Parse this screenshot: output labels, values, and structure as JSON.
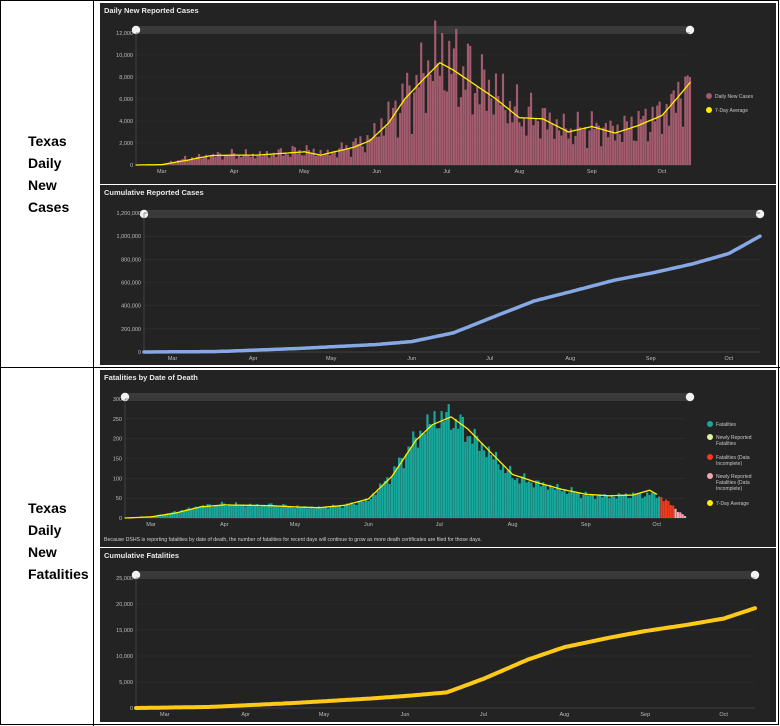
{
  "rows": [
    {
      "label_lines": [
        "Texas",
        "Daily",
        "New",
        "Cases"
      ]
    },
    {
      "label_lines": [
        "Texas",
        "Daily",
        "New",
        "Fatalities"
      ]
    }
  ],
  "colors": {
    "panel_bg": "#232323",
    "cases_bar": "#a35b6e",
    "avg_line": "#ffee00",
    "cumulative_cases": "#86a9e6",
    "fatalities_bar": "#18a89b",
    "newly_reported": "#d9f5a0",
    "incomplete": "#f03b1e",
    "newly_incomplete": "#f2a6b2",
    "cumulative_fatalities": "#ffc91a"
  },
  "fatality_note": "Because DSHS is reporting fatalities by date of death, the number of fatalities for recent days will continue to grow as more death certificates are filed for those days.",
  "chart_data": [
    {
      "id": "daily_cases",
      "type": "bar",
      "title": "Daily New Reported Cases",
      "x_start": "2020-03-04",
      "x_end": "2020-10-27",
      "ylim": [
        0,
        12000
      ],
      "yticks": [
        "0",
        "2,000",
        "4,000",
        "6,000",
        "8,000",
        "10,000",
        "12,000"
      ],
      "xticks": [
        "Mar",
        "Apr",
        "May",
        "Jun",
        "Jul",
        "Aug",
        "Sep",
        "Oct"
      ],
      "legend": [
        "Daily New Cases",
        "7-Day Average"
      ],
      "legend_position": "right",
      "series": [
        {
          "name": "Daily New Cases",
          "kind": "bar",
          "anchors": [
            [
              "2020-03-04",
              0
            ],
            [
              "2020-03-15",
              60
            ],
            [
              "2020-03-25",
              550
            ],
            [
              "2020-04-05",
              850
            ],
            [
              "2020-04-15",
              950
            ],
            [
              "2020-04-25",
              900
            ],
            [
              "2020-05-05",
              1100
            ],
            [
              "2020-05-15",
              1300
            ],
            [
              "2020-05-25",
              1000
            ],
            [
              "2020-06-05",
              1800
            ],
            [
              "2020-06-12",
              2300
            ],
            [
              "2020-06-20",
              4200
            ],
            [
              "2020-06-27",
              6000
            ],
            [
              "2020-07-05",
              8000
            ],
            [
              "2020-07-10",
              9500
            ],
            [
              "2020-07-18",
              9000
            ],
            [
              "2020-07-27",
              7500
            ],
            [
              "2020-08-05",
              6500
            ],
            [
              "2020-08-15",
              4500
            ],
            [
              "2020-08-25",
              4200
            ],
            [
              "2020-09-05",
              3000
            ],
            [
              "2020-09-15",
              3400
            ],
            [
              "2020-09-25",
              3100
            ],
            [
              "2020-10-05",
              3700
            ],
            [
              "2020-10-15",
              4600
            ],
            [
              "2020-10-22",
              6000
            ],
            [
              "2020-10-27",
              7800
            ]
          ]
        },
        {
          "name": "7-Day Average",
          "kind": "line",
          "anchors": [
            [
              "2020-03-04",
              0
            ],
            [
              "2020-03-15",
              30
            ],
            [
              "2020-03-25",
              400
            ],
            [
              "2020-04-05",
              850
            ],
            [
              "2020-04-15",
              900
            ],
            [
              "2020-04-25",
              900
            ],
            [
              "2020-05-05",
              1050
            ],
            [
              "2020-05-15",
              1200
            ],
            [
              "2020-05-22",
              900
            ],
            [
              "2020-06-05",
              1600
            ],
            [
              "2020-06-12",
              2200
            ],
            [
              "2020-06-20",
              3800
            ],
            [
              "2020-06-27",
              6000
            ],
            [
              "2020-07-05",
              7800
            ],
            [
              "2020-07-12",
              9300
            ],
            [
              "2020-07-18",
              8600
            ],
            [
              "2020-07-27",
              7300
            ],
            [
              "2020-08-05",
              6000
            ],
            [
              "2020-08-15",
              4300
            ],
            [
              "2020-08-25",
              4200
            ],
            [
              "2020-09-05",
              3000
            ],
            [
              "2020-09-15",
              3500
            ],
            [
              "2020-09-25",
              2900
            ],
            [
              "2020-10-05",
              3600
            ],
            [
              "2020-10-15",
              4500
            ],
            [
              "2020-10-22",
              6200
            ],
            [
              "2020-10-27",
              7500
            ]
          ]
        }
      ]
    },
    {
      "id": "cumulative_cases",
      "type": "line",
      "title": "Cumulative Reported Cases",
      "x_start": "2020-03-04",
      "x_end": "2020-10-27",
      "ylim": [
        0,
        1200000
      ],
      "yticks": [
        "0",
        "200,000",
        "400,000",
        "600,000",
        "800,000",
        "1,000,000",
        "1,200,000"
      ],
      "xticks": [
        "Mar",
        "Apr",
        "May",
        "Jun",
        "Jul",
        "Aug",
        "Sep",
        "Oct"
      ],
      "series": [
        {
          "name": "",
          "kind": "line",
          "anchors": [
            [
              "2020-03-04",
              0
            ],
            [
              "2020-04-01",
              4000
            ],
            [
              "2020-05-01",
              29000
            ],
            [
              "2020-06-01",
              64000
            ],
            [
              "2020-06-15",
              90000
            ],
            [
              "2020-07-01",
              165000
            ],
            [
              "2020-07-15",
              290000
            ],
            [
              "2020-08-01",
              440000
            ],
            [
              "2020-08-15",
              520000
            ],
            [
              "2020-09-01",
              620000
            ],
            [
              "2020-09-15",
              680000
            ],
            [
              "2020-10-01",
              760000
            ],
            [
              "2020-10-15",
              850000
            ],
            [
              "2020-10-27",
              1000000
            ]
          ]
        }
      ]
    },
    {
      "id": "fatalities_by_date",
      "type": "bar",
      "title": "Fatalities by Date of Death",
      "x_start": "2020-03-04",
      "x_end": "2020-10-27",
      "ylim": [
        0,
        300
      ],
      "yticks": [
        "0",
        "50",
        "100",
        "150",
        "200",
        "250",
        "300"
      ],
      "xticks": [
        "Mar",
        "Apr",
        "May",
        "Jun",
        "Jul",
        "Aug",
        "Sep",
        "Oct"
      ],
      "legend": [
        "Fatalities",
        "Newly Reported Fatalities",
        "Fatalities (Data Incomplete)",
        "Newly Reported Fatalities (Data Incomplete)",
        "7-Day Average"
      ],
      "legend_position": "right",
      "series": [
        {
          "name": "Fatalities",
          "kind": "bar",
          "anchors": [
            [
              "2020-03-04",
              0
            ],
            [
              "2020-03-15",
              3
            ],
            [
              "2020-03-25",
              15
            ],
            [
              "2020-04-05",
              30
            ],
            [
              "2020-04-15",
              35
            ],
            [
              "2020-04-25",
              32
            ],
            [
              "2020-05-05",
              33
            ],
            [
              "2020-05-15",
              28
            ],
            [
              "2020-05-25",
              26
            ],
            [
              "2020-06-05",
              32
            ],
            [
              "2020-06-15",
              45
            ],
            [
              "2020-06-25",
              110
            ],
            [
              "2020-07-05",
              200
            ],
            [
              "2020-07-12",
              245
            ],
            [
              "2020-07-20",
              255
            ],
            [
              "2020-07-27",
              215
            ],
            [
              "2020-08-05",
              165
            ],
            [
              "2020-08-15",
              105
            ],
            [
              "2020-08-25",
              88
            ],
            [
              "2020-09-05",
              72
            ],
            [
              "2020-09-15",
              58
            ],
            [
              "2020-09-25",
              55
            ],
            [
              "2020-10-05",
              58
            ],
            [
              "2020-10-12",
              60
            ],
            [
              "2020-10-15",
              58
            ],
            [
              "2020-10-20",
              40
            ],
            [
              "2020-10-24",
              18
            ],
            [
              "2020-10-27",
              5
            ]
          ]
        },
        {
          "name": "7-Day Average",
          "kind": "line",
          "anchors": [
            [
              "2020-03-04",
              0
            ],
            [
              "2020-03-15",
              3
            ],
            [
              "2020-03-25",
              12
            ],
            [
              "2020-04-05",
              28
            ],
            [
              "2020-04-15",
              33
            ],
            [
              "2020-04-25",
              32
            ],
            [
              "2020-05-05",
              31
            ],
            [
              "2020-05-15",
              28
            ],
            [
              "2020-05-25",
              26
            ],
            [
              "2020-06-05",
              32
            ],
            [
              "2020-06-15",
              48
            ],
            [
              "2020-06-25",
              105
            ],
            [
              "2020-07-05",
              195
            ],
            [
              "2020-07-12",
              235
            ],
            [
              "2020-07-20",
              255
            ],
            [
              "2020-07-27",
              225
            ],
            [
              "2020-08-05",
              170
            ],
            [
              "2020-08-15",
              110
            ],
            [
              "2020-08-25",
              90
            ],
            [
              "2020-09-05",
              72
            ],
            [
              "2020-09-15",
              60
            ],
            [
              "2020-09-25",
              56
            ],
            [
              "2020-10-05",
              58
            ],
            [
              "2020-10-12",
              70
            ],
            [
              "2020-10-15",
              60
            ]
          ]
        }
      ]
    },
    {
      "id": "cumulative_fatalities",
      "type": "line",
      "title": "Cumulative Fatalities",
      "x_start": "2020-03-04",
      "x_end": "2020-10-27",
      "ylim": [
        0,
        25000
      ],
      "yticks": [
        "0",
        "5,000",
        "10,000",
        "15,000",
        "20,000",
        "25,000"
      ],
      "xticks": [
        "Mar",
        "Apr",
        "May",
        "Jun",
        "Jul",
        "Aug",
        "Sep",
        "Oct"
      ],
      "series": [
        {
          "name": "",
          "kind": "line",
          "anchors": [
            [
              "2020-03-04",
              0
            ],
            [
              "2020-04-01",
              200
            ],
            [
              "2020-05-01",
              900
            ],
            [
              "2020-06-01",
              1800
            ],
            [
              "2020-06-15",
              2300
            ],
            [
              "2020-07-01",
              3000
            ],
            [
              "2020-07-15",
              5600
            ],
            [
              "2020-08-01",
              9300
            ],
            [
              "2020-08-15",
              11700
            ],
            [
              "2020-09-01",
              13500
            ],
            [
              "2020-09-15",
              14800
            ],
            [
              "2020-10-01",
              16000
            ],
            [
              "2020-10-15",
              17200
            ],
            [
              "2020-10-27",
              19200
            ]
          ]
        }
      ]
    }
  ]
}
